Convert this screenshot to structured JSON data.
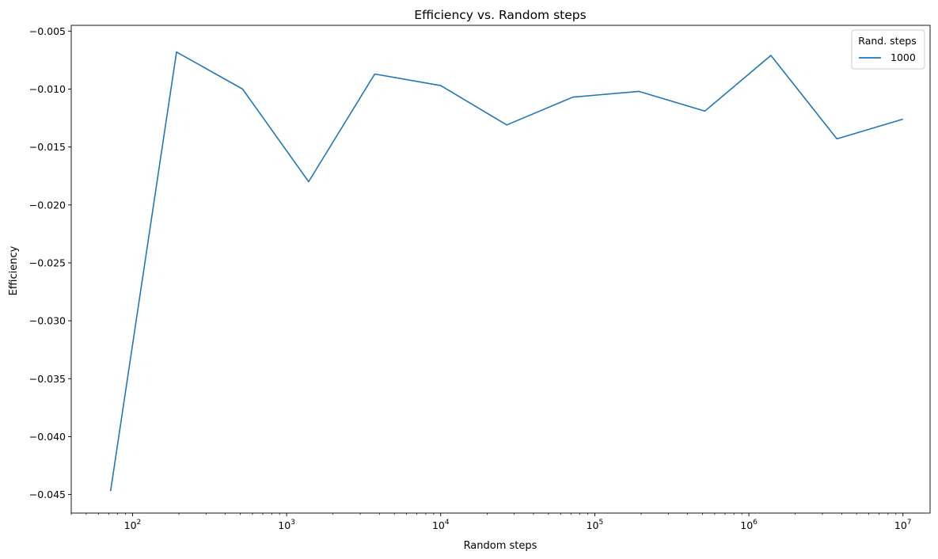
{
  "chart_data": {
    "type": "line",
    "title": "Efficiency vs. Random steps",
    "xlabel": "Random steps",
    "ylabel": "Efficiency",
    "x_scale": "log",
    "xlim": [
      40,
      15000000
    ],
    "ylim": [
      -0.0466,
      -0.0045
    ],
    "grid": false,
    "legend": {
      "title": "Rand. steps",
      "placement": "top-right"
    },
    "x_ticks": [
      {
        "value": 100,
        "base": "10",
        "exp": "2"
      },
      {
        "value": 1000,
        "base": "10",
        "exp": "3"
      },
      {
        "value": 10000,
        "base": "10",
        "exp": "4"
      },
      {
        "value": 100000,
        "base": "10",
        "exp": "5"
      },
      {
        "value": 1000000,
        "base": "10",
        "exp": "6"
      },
      {
        "value": 10000000,
        "base": "10",
        "exp": "7"
      }
    ],
    "y_ticks": [
      {
        "value": -0.045,
        "label": "−0.045"
      },
      {
        "value": -0.04,
        "label": "−0.040"
      },
      {
        "value": -0.035,
        "label": "−0.035"
      },
      {
        "value": -0.03,
        "label": "−0.030"
      },
      {
        "value": -0.025,
        "label": "−0.025"
      },
      {
        "value": -0.02,
        "label": "−0.020"
      },
      {
        "value": -0.015,
        "label": "−0.015"
      },
      {
        "value": -0.01,
        "label": "−0.010"
      },
      {
        "value": -0.005,
        "label": "−0.005"
      }
    ],
    "series": [
      {
        "name": "1000",
        "color": "#1f77b4",
        "x": [
          72,
          193,
          518,
          1389,
          3728,
          10000,
          26827,
          71969,
          193070,
          517947,
          1389495,
          3727594,
          10000000
        ],
        "y": [
          -0.0447,
          -0.0068,
          -0.01,
          -0.018,
          -0.0087,
          -0.0097,
          -0.0131,
          -0.0107,
          -0.0102,
          -0.0119,
          -0.0071,
          -0.0143,
          -0.0126
        ]
      }
    ]
  }
}
